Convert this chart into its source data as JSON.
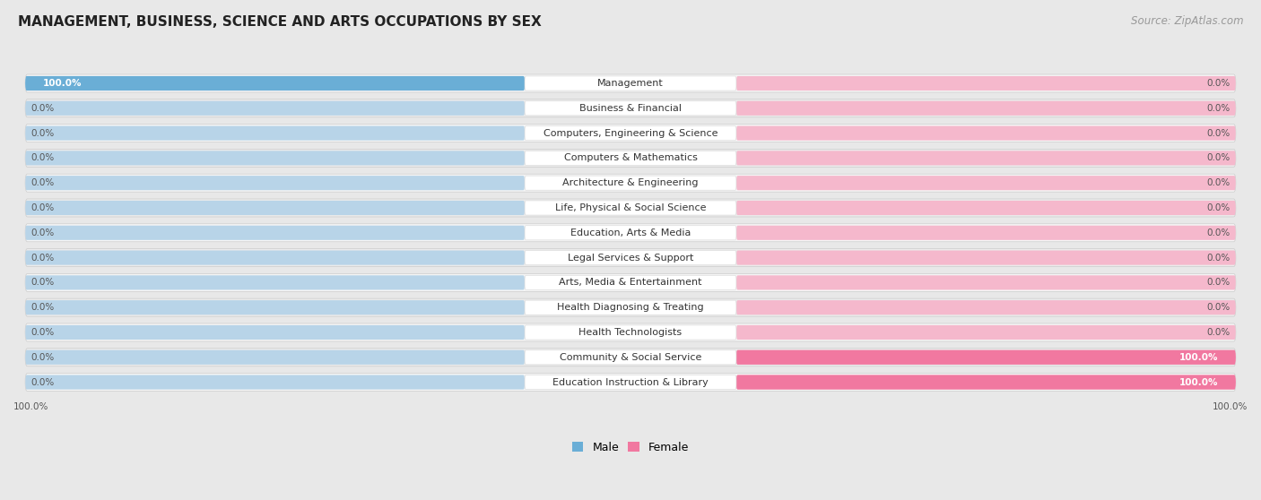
{
  "title": "MANAGEMENT, BUSINESS, SCIENCE AND ARTS OCCUPATIONS BY SEX",
  "source": "Source: ZipAtlas.com",
  "categories": [
    "Management",
    "Business & Financial",
    "Computers, Engineering & Science",
    "Computers & Mathematics",
    "Architecture & Engineering",
    "Life, Physical & Social Science",
    "Education, Arts & Media",
    "Legal Services & Support",
    "Arts, Media & Entertainment",
    "Health Diagnosing & Treating",
    "Health Technologists",
    "Community & Social Service",
    "Education Instruction & Library"
  ],
  "male_values": [
    100.0,
    0.0,
    0.0,
    0.0,
    0.0,
    0.0,
    0.0,
    0.0,
    0.0,
    0.0,
    0.0,
    0.0,
    0.0
  ],
  "female_values": [
    0.0,
    0.0,
    0.0,
    0.0,
    0.0,
    0.0,
    0.0,
    0.0,
    0.0,
    0.0,
    0.0,
    100.0,
    100.0
  ],
  "male_color": "#6aaed6",
  "female_color": "#f178a0",
  "male_label": "Male",
  "female_label": "Female",
  "background_color": "#e8e8e8",
  "row_bg_even": "#f5f5f5",
  "row_bg_odd": "#ebebeb",
  "bar_bg_color_male": "#b8d4e8",
  "bar_bg_color_female": "#f5b8cc",
  "title_fontsize": 11,
  "source_fontsize": 8.5,
  "label_fontsize": 8,
  "value_fontsize": 7.5,
  "legend_fontsize": 9
}
